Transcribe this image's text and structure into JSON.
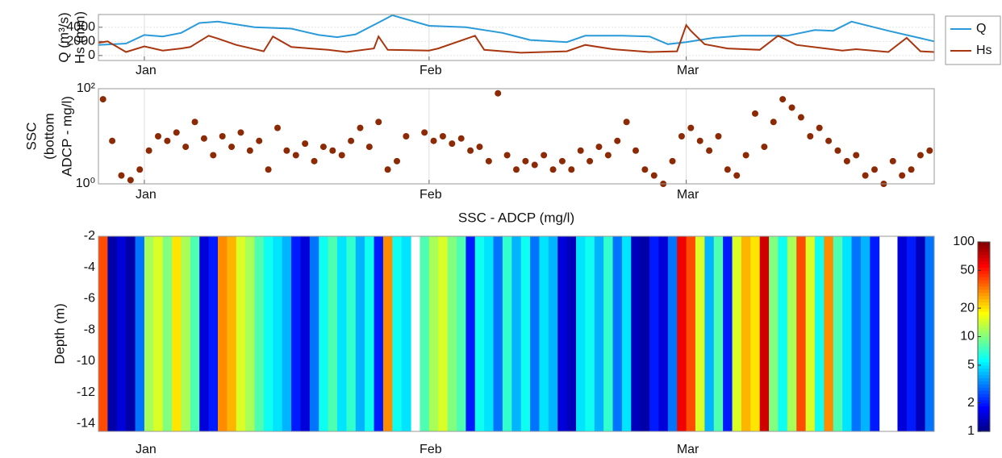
{
  "chart_data": [
    {
      "type": "line",
      "ylabel": [
        "Q (m³/s)",
        "Hs (mm)"
      ],
      "xlim": [
        -5,
        86
      ],
      "xticks": [
        {
          "value": 0,
          "label": "Jan"
        },
        {
          "value": 31,
          "label": "Feb"
        },
        {
          "value": 59,
          "label": "Mar"
        }
      ],
      "ylim": [
        -700,
        5800
      ],
      "yticks": [
        0,
        2000,
        4000
      ],
      "grid": true,
      "legend": "outside right",
      "series": [
        {
          "name": "Q",
          "color": "#2a9ad8",
          "x": [
            -5,
            -2,
            0,
            2,
            4,
            6,
            8,
            12,
            16,
            19,
            21,
            23,
            26,
            27,
            31,
            35,
            39,
            42,
            46,
            48,
            52,
            55,
            57,
            59,
            62,
            65,
            70,
            73,
            75,
            77,
            81,
            86
          ],
          "values": [
            1500,
            1700,
            2900,
            2700,
            3200,
            4600,
            4800,
            4000,
            3800,
            2900,
            2600,
            3000,
            5000,
            5700,
            4200,
            4000,
            3200,
            2200,
            1900,
            2800,
            2800,
            2700,
            1600,
            1900,
            2500,
            2800,
            2800,
            3600,
            3500,
            4800,
            3500,
            2000
          ]
        },
        {
          "name": "Hs",
          "color": "#a8360f",
          "x": [
            -5,
            -4,
            -2,
            0,
            2,
            4,
            5,
            7,
            8,
            10,
            13,
            14,
            16,
            20,
            22,
            25,
            25.5,
            26.5,
            31,
            32,
            36,
            37,
            41,
            46,
            48,
            51,
            55,
            58,
            59,
            59.5,
            61,
            63.5,
            67,
            69,
            71,
            76,
            77.5,
            81,
            83,
            84.5,
            86
          ],
          "values": [
            1800,
            2000,
            500,
            1300,
            700,
            1000,
            1200,
            2800,
            2400,
            1500,
            600,
            2700,
            1200,
            800,
            500,
            1000,
            2700,
            800,
            700,
            1000,
            2800,
            800,
            400,
            600,
            1500,
            900,
            500,
            600,
            4300,
            3500,
            1600,
            1000,
            800,
            2800,
            1500,
            700,
            900,
            500,
            2500,
            600,
            500
          ]
        }
      ]
    },
    {
      "type": "scatter",
      "ylabel": [
        "SSC",
        "(bottom",
        "ADCP - mg/l)"
      ],
      "xlim": [
        -5,
        86
      ],
      "xticks": [
        {
          "value": 0,
          "label": "Jan"
        },
        {
          "value": 31,
          "label": "Feb"
        },
        {
          "value": 59,
          "label": "Mar"
        }
      ],
      "ylim": [
        1,
        100
      ],
      "log_y": true,
      "yticks": [
        {
          "value": 1,
          "label": "10⁰"
        },
        {
          "value": 100,
          "label": "10²"
        }
      ],
      "grid": true,
      "color": "#8b2a05",
      "x": [
        -4.5,
        -3.5,
        -2.5,
        -1.5,
        -0.5,
        0.5,
        1.5,
        2.5,
        3.5,
        4.5,
        5.5,
        6.5,
        7.5,
        8.5,
        9.5,
        10.5,
        11.5,
        12.5,
        13.5,
        14.5,
        15.5,
        16.5,
        17.5,
        18.5,
        19.5,
        20.5,
        21.5,
        22.5,
        23.5,
        24.5,
        25.5,
        26.5,
        27.5,
        28.5,
        29.5,
        30.5,
        31.5,
        32.5,
        33.5,
        34.5,
        35.5,
        36.5,
        37.5,
        38.5,
        39.5,
        40.5,
        41.5,
        42.5,
        43.5,
        44.5,
        45.5,
        46.5,
        47.5,
        48.5,
        49.5,
        50.5,
        51.5,
        52.5,
        53.5,
        54.5,
        55.5,
        56.5,
        57.5,
        58.5,
        59.5,
        60.5,
        61.5,
        62.5,
        63.5,
        64.5,
        65.5,
        66.5,
        67.5,
        68.5,
        69.5,
        70.5,
        71.5,
        72.5,
        73.5,
        74.5,
        75.5,
        76.5,
        77.5,
        78.5,
        79.5,
        80.5,
        81.5,
        82.5,
        83.5,
        84.5,
        85.5
      ],
      "values": [
        60,
        8,
        1.5,
        1.2,
        2,
        5,
        10,
        8,
        12,
        6,
        20,
        9,
        4,
        10,
        6,
        12,
        5,
        8,
        2,
        15,
        5,
        4,
        7,
        3,
        6,
        5,
        4,
        8,
        15,
        6,
        20,
        2,
        3,
        10,
        null,
        12,
        8,
        10,
        7,
        9,
        5,
        6,
        3,
        80,
        4,
        2,
        3,
        2.5,
        4,
        2,
        3,
        2,
        5,
        3,
        6,
        4,
        8,
        20,
        5,
        2,
        1.5,
        1,
        3,
        10,
        15,
        8,
        5,
        10,
        2,
        1.5,
        4,
        30,
        6,
        20,
        60,
        40,
        25,
        10,
        15,
        8,
        5,
        3,
        4,
        1.5,
        2,
        1,
        3,
        1.5,
        2,
        4,
        5
      ]
    },
    {
      "type": "heatmap",
      "title": "SSC - ADCP (mg/l)",
      "ylabel": [
        "Depth  (m)"
      ],
      "xlim": [
        -5,
        86
      ],
      "xticks": [
        {
          "value": 0,
          "label": "Jan"
        },
        {
          "value": 31,
          "label": "Feb"
        },
        {
          "value": 59,
          "label": "Mar"
        }
      ],
      "ylim": [
        -14.5,
        -2
      ],
      "yticks": [
        -2,
        -4,
        -6,
        -8,
        -10,
        -12,
        -14
      ],
      "colormap": "jet",
      "clim": [
        1,
        100
      ],
      "cticks": [
        1,
        2,
        5,
        10,
        20,
        50,
        100
      ],
      "x": [
        -4.5,
        -3.5,
        -2.5,
        -1.5,
        -0.5,
        0.5,
        1.5,
        2.5,
        3.5,
        4.5,
        5.5,
        6.5,
        7.5,
        8.5,
        9.5,
        10.5,
        11.5,
        12.5,
        13.5,
        14.5,
        15.5,
        16.5,
        17.5,
        18.5,
        19.5,
        20.5,
        21.5,
        22.5,
        23.5,
        24.5,
        25.5,
        26.5,
        27.5,
        28.5,
        29.5,
        30.5,
        31.5,
        32.5,
        33.5,
        34.5,
        35.5,
        36.5,
        37.5,
        38.5,
        39.5,
        40.5,
        41.5,
        42.5,
        43.5,
        44.5,
        45.5,
        46.5,
        47.5,
        48.5,
        49.5,
        50.5,
        51.5,
        52.5,
        53.5,
        54.5,
        55.5,
        56.5,
        57.5,
        58.5,
        59.5,
        60.5,
        61.5,
        62.5,
        63.5,
        64.5,
        65.5,
        66.5,
        67.5,
        68.5,
        69.5,
        70.5,
        71.5,
        72.5,
        73.5,
        74.5,
        75.5,
        76.5,
        77.5,
        78.5,
        79.5,
        80.5,
        81.5,
        82.5,
        83.5,
        84.5,
        85.5
      ],
      "values": [
        40,
        1.2,
        1.5,
        1.2,
        3,
        12,
        15,
        10,
        20,
        12,
        8,
        1.5,
        2,
        30,
        25,
        15,
        12,
        8,
        6,
        5,
        4,
        2,
        1.5,
        3,
        6,
        8,
        5,
        7,
        4,
        6,
        2,
        30,
        6,
        5,
        null,
        8,
        12,
        15,
        10,
        8,
        2,
        6,
        5,
        3,
        7,
        4,
        6,
        3,
        5,
        4,
        1.5,
        1.3,
        5,
        6,
        4,
        7,
        3,
        5,
        1.3,
        1.2,
        2,
        1.5,
        3,
        60,
        40,
        15,
        4,
        8,
        2,
        15,
        25,
        20,
        70,
        10,
        6,
        12,
        40,
        15,
        6,
        30,
        8,
        5,
        3,
        4,
        2,
        null,
        null,
        1.5,
        2,
        1.3,
        3
      ]
    }
  ]
}
